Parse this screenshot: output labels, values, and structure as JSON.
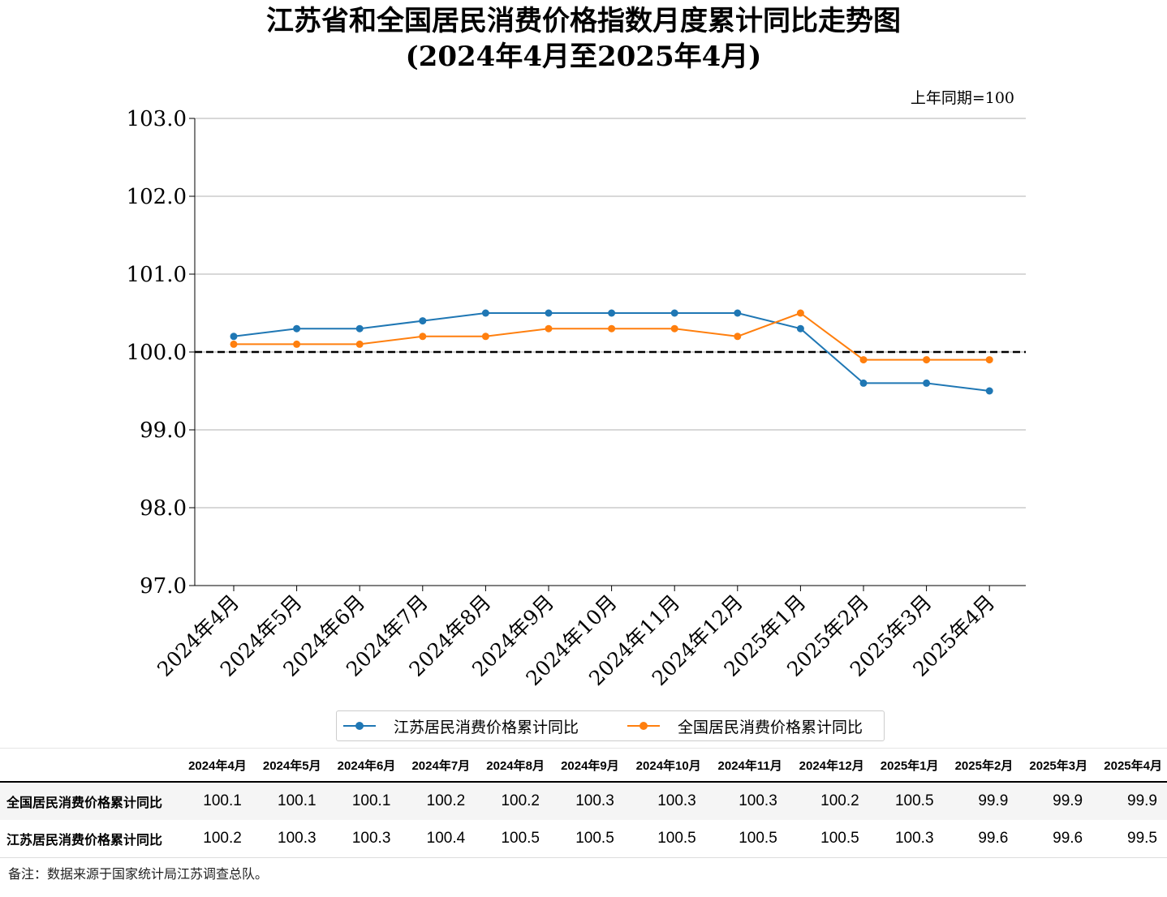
{
  "title_line1": "江苏省和全国居民消费价格指数月度累计同比走势图",
  "title_line2": "(2024年4月至2025年4月)",
  "unit_note": "上年同期=100",
  "chart_data": {
    "type": "line",
    "categories": [
      "2024年4月",
      "2024年5月",
      "2024年6月",
      "2024年7月",
      "2024年8月",
      "2024年9月",
      "2024年10月",
      "2024年11月",
      "2024年12月",
      "2025年1月",
      "2025年2月",
      "2025年3月",
      "2025年4月"
    ],
    "series": [
      {
        "name": "江苏居民消费价格累计同比",
        "color": "#1f77b4",
        "values": [
          100.2,
          100.3,
          100.3,
          100.4,
          100.5,
          100.5,
          100.5,
          100.5,
          100.5,
          100.3,
          99.6,
          99.6,
          99.5
        ]
      },
      {
        "name": "全国居民消费价格累计同比",
        "color": "#ff7f0e",
        "values": [
          100.1,
          100.1,
          100.1,
          100.2,
          100.2,
          100.3,
          100.3,
          100.3,
          100.2,
          100.5,
          99.9,
          99.9,
          99.9
        ]
      }
    ],
    "ylim": [
      97.0,
      103.0
    ],
    "yticks": [
      "97.0",
      "98.0",
      "99.0",
      "100.0",
      "101.0",
      "102.0",
      "103.0"
    ],
    "reference_line": 100.0,
    "grid": "horizontal",
    "legend_position": "bottom"
  },
  "table": {
    "headers": [
      "2024年4月",
      "2024年5月",
      "2024年6月",
      "2024年7月",
      "2024年8月",
      "2024年9月",
      "2024年10月",
      "2024年11月",
      "2024年12月",
      "2025年1月",
      "2025年2月",
      "2025年3月",
      "2025年4月"
    ],
    "rows": [
      {
        "label": "全国居民消费价格累计同比",
        "values": [
          "100.1",
          "100.1",
          "100.1",
          "100.2",
          "100.2",
          "100.3",
          "100.3",
          "100.3",
          "100.2",
          "100.5",
          "99.9",
          "99.9",
          "99.9"
        ]
      },
      {
        "label": "江苏居民消费价格累计同比",
        "values": [
          "100.2",
          "100.3",
          "100.3",
          "100.4",
          "100.5",
          "100.5",
          "100.5",
          "100.5",
          "100.5",
          "100.3",
          "99.6",
          "99.6",
          "99.5"
        ]
      }
    ]
  },
  "footnote": "备注：数据来源于国家统计局江苏调查总队。"
}
